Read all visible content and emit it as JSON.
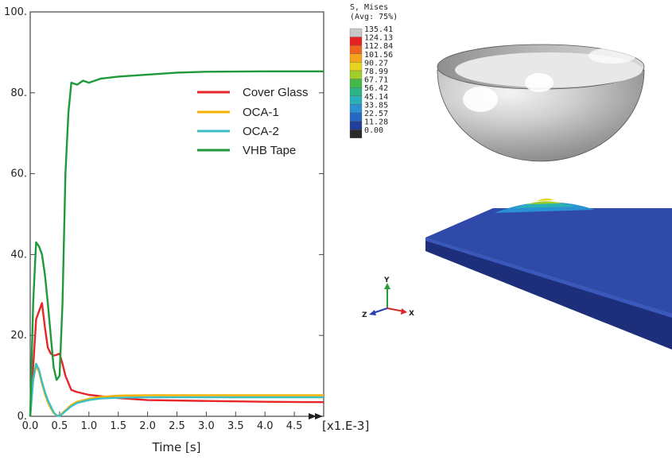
{
  "chart_data": {
    "type": "line",
    "title": "",
    "xlabel": "Time [s]",
    "ylabel": "",
    "x_multiplier_label": "[x1.E-3]",
    "xlim": [
      0,
      5
    ],
    "ylim": [
      0,
      100
    ],
    "x_ticks": [
      "0.0",
      "0.5",
      "1.0",
      "1.5",
      "2.0",
      "2.5",
      "3.0",
      "3.5",
      "4.0",
      "4.5"
    ],
    "y_ticks": [
      "0.",
      "20.",
      "40.",
      "60.",
      "80.",
      "100."
    ],
    "grid": false,
    "legend_position": "top-right",
    "series": [
      {
        "name": "Cover Glass",
        "color": "#e8262a",
        "x": [
          0,
          0.05,
          0.1,
          0.15,
          0.2,
          0.25,
          0.3,
          0.35,
          0.4,
          0.45,
          0.5,
          0.55,
          0.6,
          0.7,
          0.8,
          1.0,
          1.5,
          2,
          3,
          4,
          5
        ],
        "y": [
          0,
          12,
          24,
          26,
          28,
          22,
          17,
          15.5,
          15,
          15.2,
          15.5,
          13,
          10,
          6.5,
          6,
          5.3,
          4.5,
          4,
          3.8,
          3.6,
          3.5
        ]
      },
      {
        "name": "OCA-1",
        "color": "#f5b200",
        "x": [
          0,
          0.05,
          0.1,
          0.15,
          0.2,
          0.25,
          0.3,
          0.35,
          0.4,
          0.45,
          0.5,
          0.55,
          0.6,
          0.7,
          0.8,
          1.0,
          1.2,
          1.5,
          2,
          3,
          4,
          5
        ],
        "y": [
          0,
          9,
          12.5,
          11,
          8,
          5.5,
          3.5,
          2,
          0.8,
          0.2,
          0.2,
          0.8,
          1.5,
          2.8,
          3.6,
          4.3,
          4.8,
          5.1,
          5.2,
          5.2,
          5.2,
          5.2
        ]
      },
      {
        "name": "OCA-2",
        "color": "#3cbfc4",
        "x": [
          0,
          0.05,
          0.1,
          0.15,
          0.2,
          0.25,
          0.3,
          0.35,
          0.4,
          0.45,
          0.5,
          0.55,
          0.6,
          0.7,
          0.8,
          1.0,
          1.2,
          1.5,
          2,
          3,
          4,
          5
        ],
        "y": [
          0,
          9,
          13,
          11.5,
          8.5,
          6,
          4,
          2.5,
          1,
          0.2,
          0.1,
          0.6,
          1.3,
          2.5,
          3.3,
          4,
          4.4,
          4.6,
          4.7,
          4.7,
          4.7,
          4.7
        ]
      },
      {
        "name": "VHB Tape",
        "color": "#1e9a3a",
        "x": [
          0,
          0.05,
          0.1,
          0.15,
          0.2,
          0.25,
          0.3,
          0.35,
          0.4,
          0.45,
          0.5,
          0.55,
          0.6,
          0.65,
          0.7,
          0.8,
          0.9,
          1.0,
          1.2,
          1.5,
          2,
          2.5,
          3,
          4,
          5
        ],
        "y": [
          0,
          28,
          43,
          42,
          40,
          35,
          28,
          20,
          12,
          9,
          10,
          28,
          60,
          75,
          82.5,
          82,
          83,
          82.5,
          83.5,
          84,
          84.5,
          85,
          85.2,
          85.3,
          85.3
        ]
      }
    ]
  },
  "contour_legend": {
    "title_line1": "S, Mises",
    "title_line2": "(Avg: 75%)",
    "values": [
      "135.41",
      "124.13",
      "112.84",
      "101.56",
      "90.27",
      "78.99",
      "67.71",
      "56.42",
      "45.14",
      "33.85",
      "22.57",
      "11.28",
      "0.00"
    ],
    "colors": [
      "#c8c8c8",
      "#e52421",
      "#f1641d",
      "#f5a31b",
      "#e6d51e",
      "#9fcf28",
      "#43b94a",
      "#2ab585",
      "#2bb0b7",
      "#2a92d3",
      "#2669c4",
      "#223f9a",
      "#2a2a2a"
    ]
  },
  "triad": {
    "y": "Y",
    "z": "Z",
    "x": "X"
  }
}
